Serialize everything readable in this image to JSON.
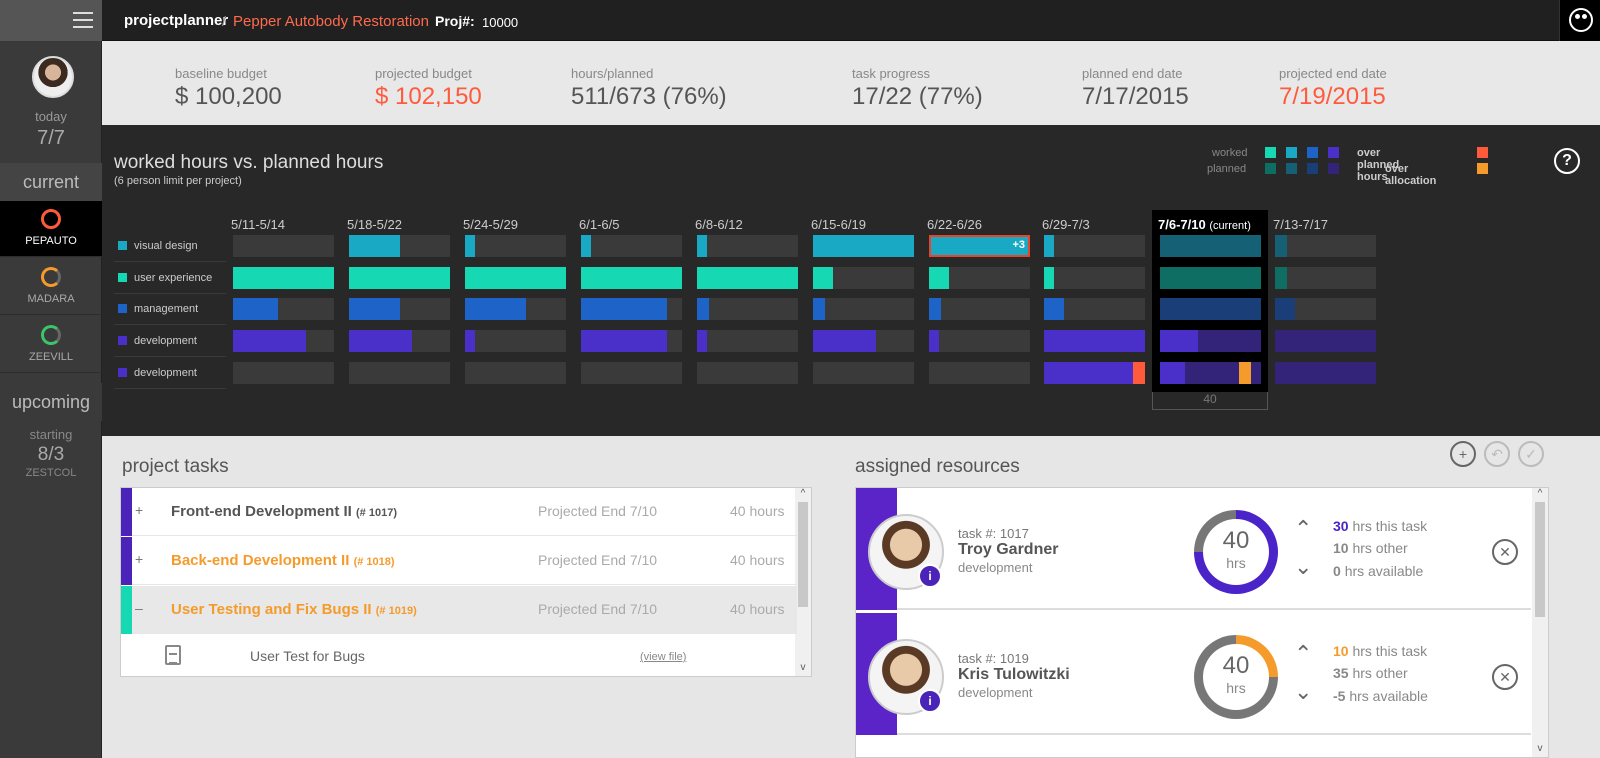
{
  "topbar": {
    "brand": "projectplanner",
    "separator": "/",
    "project_name": "Pepper Autobody Restoration",
    "proj_label": "Proj#:",
    "proj_number": "10000"
  },
  "sidebar": {
    "today_label": "today",
    "today_value": "7/7",
    "current_label": "current",
    "current_items": [
      {
        "label": "PEPAUTO",
        "ring_color": "#ff5a3c",
        "active": true
      },
      {
        "label": "MADARA",
        "ring_color": "#f59b2c",
        "active": false
      },
      {
        "label": "ZEEVILL",
        "ring_color": "#3ac56a",
        "active": false
      }
    ],
    "upcoming_label": "upcoming",
    "starting_label": "starting",
    "starting_value": "8/3",
    "starting_code": "ZESTCOL"
  },
  "stats": [
    {
      "label": "baseline budget",
      "value": "$ 100,200",
      "highlight": false
    },
    {
      "label": "projected budget",
      "value": "$ 102,150",
      "highlight": true
    },
    {
      "label": "hours/planned",
      "value": "511/673 (76%)",
      "highlight": false
    },
    {
      "label": "task progress",
      "value": "17/22 (77%)",
      "highlight": false
    },
    {
      "label": "planned end date",
      "value": "7/17/2015",
      "highlight": false
    },
    {
      "label": "projected end date",
      "value": "7/19/2015",
      "highlight": true
    }
  ],
  "chart": {
    "title": "worked hours vs. planned hours",
    "subtitle": "(6 person limit per project)",
    "legend": {
      "worked_label": "worked",
      "planned_label": "planned",
      "worked_colors": [
        "#16d9b3",
        "#1aa9c4",
        "#1e64c8",
        "#4a30c8"
      ],
      "planned_colors": [
        "#0f6e63",
        "#166075",
        "#1a3e78",
        "#33247a"
      ],
      "over_planned_label": "over planned hours",
      "over_planned_color": "#ff5a3c",
      "over_allocation_label": "over allocation",
      "over_allocation_color": "#f59b2c"
    },
    "help_icon": "?",
    "weeks": [
      "5/11-5/14",
      "5/18-5/22",
      "5/24-5/29",
      "6/1-6/5",
      "6/8-6/12",
      "6/15-6/19",
      "6/22-6/26",
      "6/29-7/3",
      "7/6-7/10",
      "7/13-7/17"
    ],
    "current_week_index": 8,
    "current_suffix": "(current)",
    "current_footer": "40",
    "rows": [
      {
        "label": "visual design",
        "color": "#1aa9c4",
        "planned": "#166075"
      },
      {
        "label": "user experience",
        "color": "#16d9b3",
        "planned": "#0f6e63"
      },
      {
        "label": "management",
        "color": "#1e64c8",
        "planned": "#1a3e78"
      },
      {
        "label": "development",
        "color": "#4a30c8",
        "planned": "#33247a"
      },
      {
        "label": "development",
        "color": "#4a30c8",
        "planned": "#33247a"
      }
    ],
    "fills": [
      [
        0,
        0.5,
        0.1,
        0.1,
        0.1,
        1.0,
        1.0,
        0.1,
        0.15,
        0.12
      ],
      [
        1.0,
        1.0,
        1.0,
        1.0,
        1.0,
        0.2,
        0.2,
        0.1,
        0.15,
        0.12
      ],
      [
        0.45,
        0.5,
        0.6,
        0.85,
        0.12,
        0.12,
        0.12,
        0.2,
        0.25,
        0.2
      ],
      [
        0.72,
        0.62,
        0.1,
        0.85,
        0.1,
        0.62,
        0.1,
        1.0,
        0.38,
        0
      ],
      [
        0,
        0,
        0,
        0,
        0,
        0,
        0,
        0.9,
        0.25,
        0
      ]
    ],
    "over_planned_cell": {
      "row": 0,
      "week": 6,
      "label": "+3"
    },
    "over_planned_overflow": {
      "row": 4,
      "week": 7
    },
    "over_allocation_marker": {
      "row": 4,
      "week": 8
    }
  },
  "tasks": {
    "title": "project tasks",
    "items": [
      {
        "expander": "+",
        "name": "Front-end Development II",
        "number": "(# 1017)",
        "projected": "Projected End 7/10",
        "hours": "40 hours",
        "color": "#4a24b8",
        "orange": false
      },
      {
        "expander": "+",
        "name": "Back-end Development II",
        "number": "(# 1018)",
        "projected": "Projected End 7/10",
        "hours": "40 hours",
        "color": "#4a24b8",
        "orange": true
      },
      {
        "expander": "–",
        "name": "User Testing and Fix Bugs II",
        "number": "(# 1019)",
        "projected": "Projected End 7/10",
        "hours": "40 hours",
        "color": "#16d9b3",
        "orange": true
      }
    ],
    "subitem": {
      "file_name": "User Test for Bugs",
      "link": "(view file)"
    }
  },
  "resources": {
    "title": "assigned resources",
    "people": [
      {
        "task_label": "task #:",
        "task_num": "1017",
        "name": "Troy Gardner",
        "department": "development",
        "hours": "40",
        "hours_unit": "hrs",
        "donut_color": "#4a24c8",
        "donut_pct": 0.75,
        "this_task": "30",
        "this_task_label": "hrs this task",
        "other": "10",
        "other_label": "hrs other",
        "available": "0",
        "available_label": "hrs available",
        "accent": "#4a24c8"
      },
      {
        "task_label": "task #:",
        "task_num": "1019",
        "name": "Kris Tulowitzki",
        "department": "development",
        "hours": "40",
        "hours_unit": "hrs",
        "donut_color": "#f59b2c",
        "donut_pct": 0.25,
        "this_task": "10",
        "this_task_label": "hrs this task",
        "other": "35",
        "other_label": "hrs other",
        "available": "-5",
        "available_label": "hrs available",
        "accent": "#f59b2c"
      }
    ]
  }
}
